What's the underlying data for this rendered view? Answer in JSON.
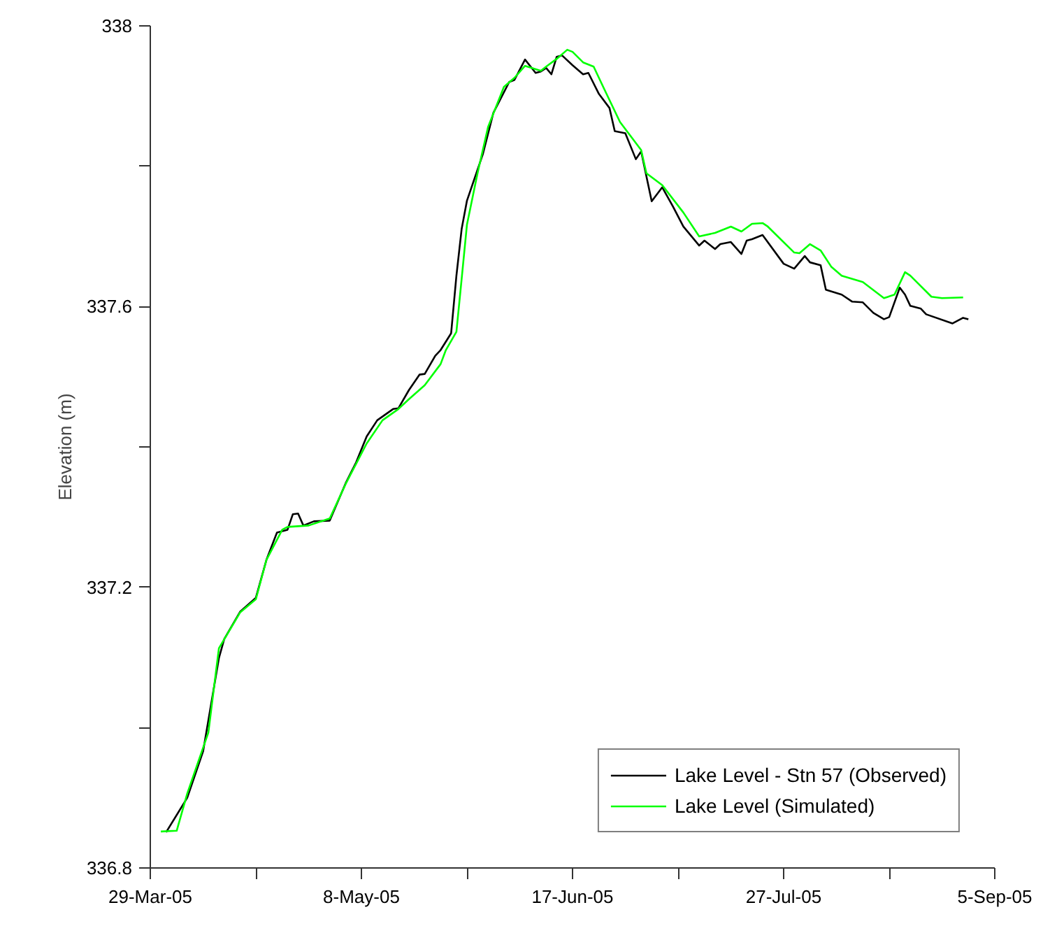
{
  "chart_data": {
    "type": "line",
    "ylabel": "Elevation (m)",
    "xlim": [
      "2005-03-29",
      "2005-09-05"
    ],
    "xticks": [
      {
        "value": "2005-03-29",
        "label": "29-Mar-05"
      },
      {
        "value": "2005-04-18",
        "label": null
      },
      {
        "value": "2005-05-08",
        "label": "8-May-05"
      },
      {
        "value": "2005-05-28",
        "label": null
      },
      {
        "value": "2005-06-17",
        "label": "17-Jun-05"
      },
      {
        "value": "2005-07-07",
        "label": null
      },
      {
        "value": "2005-07-27",
        "label": "27-Jul-05"
      },
      {
        "value": "2005-08-16",
        "label": null
      },
      {
        "value": "2005-09-05",
        "label": "5-Sep-05"
      }
    ],
    "ylim": [
      336.8,
      338
    ],
    "yticks": [
      336.8,
      {
        "value": 337.0,
        "label": null
      },
      337.2,
      {
        "value": 337.4,
        "label": null
      },
      337.6,
      {
        "value": 337.8,
        "label": null
      },
      338
    ],
    "grid": false,
    "legend": "bottom right",
    "line_style": "solid",
    "series": [
      {
        "name": "Lake Level - Stn 57 (Observed)",
        "color": "#000000",
        "x": [
          "2005-04-01",
          "2005-04-05",
          "2005-04-08",
          "2005-04-11",
          "2005-04-12",
          "2005-04-15",
          "2005-04-18",
          "2005-04-20",
          "2005-04-22",
          "2005-04-24",
          "2005-04-25",
          "2005-04-26",
          "2005-04-27",
          "2005-04-29",
          "2005-05-02",
          "2005-05-05",
          "2005-05-07",
          "2005-05-09",
          "2005-05-11",
          "2005-05-14",
          "2005-05-15",
          "2005-05-17",
          "2005-05-19",
          "2005-05-20",
          "2005-05-22",
          "2005-05-23",
          "2005-05-25",
          "2005-05-26",
          "2005-05-27",
          "2005-05-28",
          "2005-05-31",
          "2005-06-02",
          "2005-06-05",
          "2005-06-06",
          "2005-06-08",
          "2005-06-10",
          "2005-06-11",
          "2005-06-12",
          "2005-06-13",
          "2005-06-14",
          "2005-06-15",
          "2005-06-17",
          "2005-06-19",
          "2005-06-20",
          "2005-06-22",
          "2005-06-24",
          "2005-06-25",
          "2005-06-27",
          "2005-06-29",
          "2005-06-30",
          "2005-07-02",
          "2005-07-04",
          "2005-07-06",
          "2005-07-08",
          "2005-07-11",
          "2005-07-12",
          "2005-07-14",
          "2005-07-15",
          "2005-07-17",
          "2005-07-19",
          "2005-07-20",
          "2005-07-21",
          "2005-07-23",
          "2005-07-27",
          "2005-07-29",
          "2005-07-31",
          "2005-08-01",
          "2005-08-03",
          "2005-08-04",
          "2005-08-07",
          "2005-08-09",
          "2005-08-11",
          "2005-08-13",
          "2005-08-15",
          "2005-08-16",
          "2005-08-18",
          "2005-08-19",
          "2005-08-20",
          "2005-08-22",
          "2005-08-23",
          "2005-08-28",
          "2005-08-30",
          "2005-08-31"
        ],
        "values": [
          336.851,
          336.9,
          336.966,
          337.099,
          337.126,
          337.165,
          337.185,
          337.239,
          337.278,
          337.282,
          337.304,
          337.305,
          337.288,
          337.294,
          337.295,
          337.348,
          337.378,
          337.415,
          337.438,
          337.454,
          337.455,
          337.481,
          337.503,
          337.504,
          337.53,
          337.538,
          337.562,
          337.644,
          337.711,
          337.751,
          337.817,
          337.876,
          337.92,
          337.923,
          337.952,
          337.933,
          337.935,
          337.94,
          337.931,
          337.956,
          337.958,
          337.944,
          337.931,
          337.933,
          337.903,
          337.883,
          337.85,
          337.847,
          337.81,
          337.821,
          337.75,
          337.77,
          337.743,
          337.714,
          337.687,
          337.694,
          337.682,
          337.689,
          337.692,
          337.675,
          337.694,
          337.696,
          337.702,
          337.661,
          337.654,
          337.672,
          337.663,
          337.659,
          337.624,
          337.617,
          337.607,
          337.606,
          337.591,
          337.582,
          337.585,
          337.627,
          337.617,
          337.601,
          337.597,
          337.589,
          337.576,
          337.584,
          337.582
        ]
      },
      {
        "name": "Lake Level (Simulated)",
        "color": "#00ff00",
        "x": [
          "2005-03-31",
          "2005-04-03",
          "2005-04-05",
          "2005-04-09",
          "2005-04-11",
          "2005-04-15",
          "2005-04-18",
          "2005-04-20",
          "2005-04-23",
          "2005-04-24",
          "2005-04-28",
          "2005-05-02",
          "2005-05-05",
          "2005-05-09",
          "2005-05-12",
          "2005-05-15",
          "2005-05-17",
          "2005-05-20",
          "2005-05-23",
          "2005-05-24",
          "2005-05-26",
          "2005-05-27",
          "2005-05-28",
          "2005-05-30",
          "2005-06-01",
          "2005-06-04",
          "2005-06-06",
          "2005-06-08",
          "2005-06-11",
          "2005-06-12",
          "2005-06-14",
          "2005-06-16",
          "2005-06-17",
          "2005-06-19",
          "2005-06-21",
          "2005-06-23",
          "2005-06-26",
          "2005-06-27",
          "2005-06-30",
          "2005-07-01",
          "2005-07-04",
          "2005-07-08",
          "2005-07-11",
          "2005-07-14",
          "2005-07-17",
          "2005-07-19",
          "2005-07-21",
          "2005-07-23",
          "2005-07-24",
          "2005-07-29",
          "2005-07-30",
          "2005-08-01",
          "2005-08-03",
          "2005-08-05",
          "2005-08-07",
          "2005-08-11",
          "2005-08-15",
          "2005-08-17",
          "2005-08-19",
          "2005-08-20",
          "2005-08-24",
          "2005-08-26",
          "2005-08-30"
        ],
        "values": [
          336.852,
          336.853,
          336.906,
          336.993,
          337.113,
          337.164,
          337.183,
          337.239,
          337.282,
          337.286,
          337.288,
          337.298,
          337.347,
          337.405,
          337.438,
          337.454,
          337.468,
          337.488,
          337.518,
          337.538,
          337.564,
          337.64,
          337.717,
          337.79,
          337.856,
          337.913,
          337.926,
          337.943,
          337.936,
          337.942,
          337.953,
          337.966,
          337.963,
          337.948,
          337.942,
          337.91,
          337.863,
          337.853,
          337.823,
          337.79,
          337.773,
          337.734,
          337.7,
          337.705,
          337.714,
          337.707,
          337.718,
          337.719,
          337.714,
          337.677,
          337.676,
          337.689,
          337.68,
          337.657,
          337.644,
          337.635,
          337.612,
          337.617,
          337.649,
          337.644,
          337.614,
          337.612,
          337.613
        ]
      }
    ]
  }
}
